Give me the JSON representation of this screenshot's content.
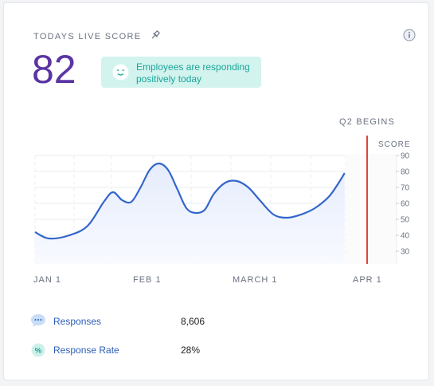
{
  "header": {
    "title": "TODAYS LIVE SCORE",
    "pin_icon": "pin-icon",
    "info_icon": "info-icon"
  },
  "score": {
    "value": "82",
    "color": "#5b35a3"
  },
  "sentiment": {
    "line1": "Employees are responding",
    "line2": "positively today",
    "icon": "smiley-icon"
  },
  "chart_data": {
    "type": "area",
    "annotation": "Q2 BEGINS",
    "y_axis_title": "SCORE",
    "y_ticks": [
      "90",
      "80",
      "70",
      "60",
      "50",
      "40",
      "30"
    ],
    "x_ticks": [
      "JAN 1",
      "FEB 1",
      "MARCH 1",
      "APR 1"
    ],
    "ylim": [
      25,
      95
    ],
    "grid": true,
    "line_color": "#3366cc",
    "marker_color": "#e0443e",
    "points": [
      [
        0,
        42
      ],
      [
        6,
        38
      ],
      [
        15,
        40
      ],
      [
        23,
        46
      ],
      [
        30,
        61
      ],
      [
        34,
        67
      ],
      [
        38,
        62
      ],
      [
        42,
        61
      ],
      [
        46,
        70
      ],
      [
        50,
        81
      ],
      [
        54,
        85
      ],
      [
        58,
        81
      ],
      [
        62,
        69
      ],
      [
        66,
        57
      ],
      [
        70,
        54
      ],
      [
        74,
        56
      ],
      [
        78,
        66
      ],
      [
        83,
        73
      ],
      [
        88,
        74
      ],
      [
        93,
        70
      ],
      [
        98,
        62
      ],
      [
        104,
        53
      ],
      [
        110,
        51
      ],
      [
        116,
        53
      ],
      [
        122,
        57
      ],
      [
        128,
        64
      ],
      [
        132,
        72
      ],
      [
        135,
        79
      ]
    ]
  },
  "metrics": [
    {
      "label": "Responses",
      "value": "8,606",
      "icon": "chat-bubble-icon"
    },
    {
      "label": "Response Rate",
      "value": "28%",
      "icon": "percent-icon"
    }
  ]
}
